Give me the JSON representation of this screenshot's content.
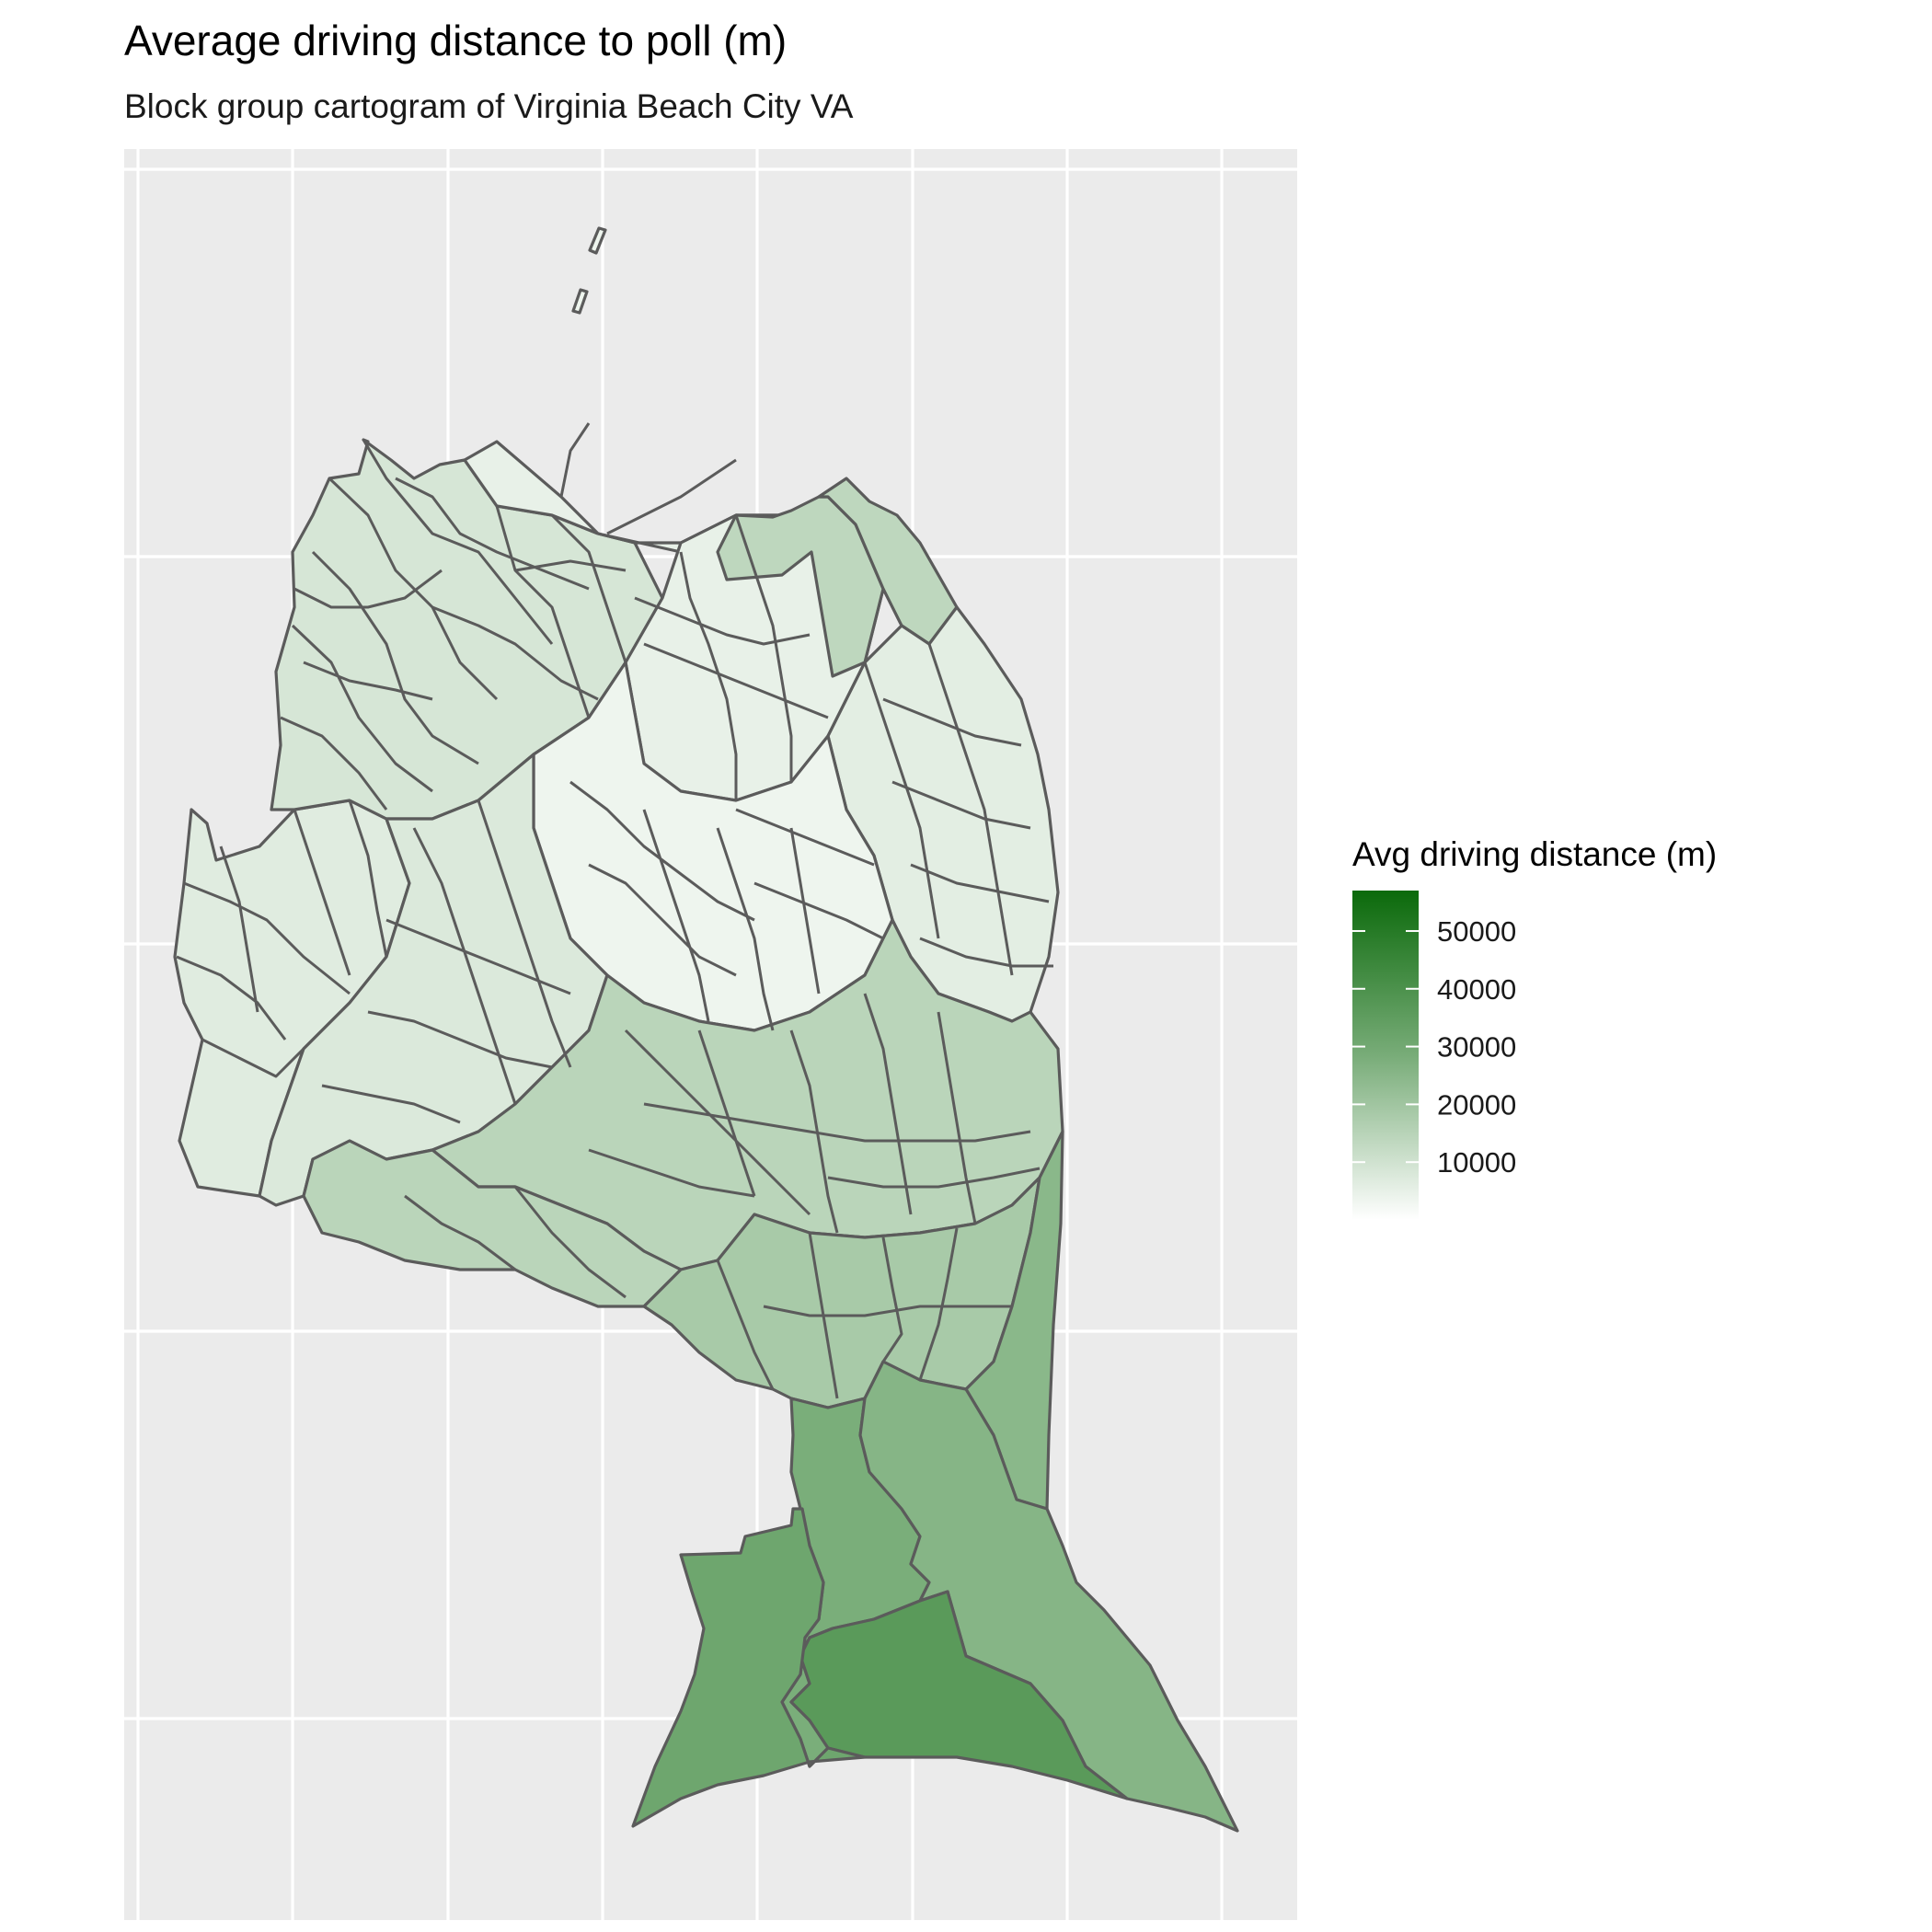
{
  "chart_data": {
    "type": "choropleth",
    "title": "Average driving distance to poll (m)",
    "subtitle": "Block group cartogram of Virginia Beach City VA",
    "legend": {
      "title": "Avg driving distance (m)",
      "placement": "right",
      "scale_min": 0,
      "scale_max": 57000,
      "ticks": [
        10000,
        20000,
        30000,
        40000,
        50000
      ],
      "tick_labels": [
        "10000",
        "20000",
        "30000",
        "40000",
        "50000"
      ],
      "color_low": "#ffffff",
      "color_high": "#0b6a0b"
    },
    "grid": true,
    "panel_background": "#ebebeb",
    "border_color": "#5b5b5b",
    "regions": [
      {
        "id": "southwest-large",
        "value": 31000
      },
      {
        "id": "south-central-large",
        "value": 36000
      },
      {
        "id": "southeast-large",
        "value": 25000
      },
      {
        "id": "south-middle",
        "value": 28000
      },
      {
        "id": "east-coastal-strip",
        "value": 24000
      },
      {
        "id": "upper-south-band",
        "value": 17000
      },
      {
        "id": "lower-middle-band",
        "value": 13000
      },
      {
        "id": "northeast-coastal",
        "value": 12000
      },
      {
        "id": "northwest-area",
        "value": 7000
      },
      {
        "id": "west-lobe",
        "value": 5000
      },
      {
        "id": "north-central",
        "value": 3500
      },
      {
        "id": "central-core",
        "value": 2500
      },
      {
        "id": "east-central",
        "value": 4500
      },
      {
        "id": "south-west-central",
        "value": 6000
      }
    ]
  }
}
